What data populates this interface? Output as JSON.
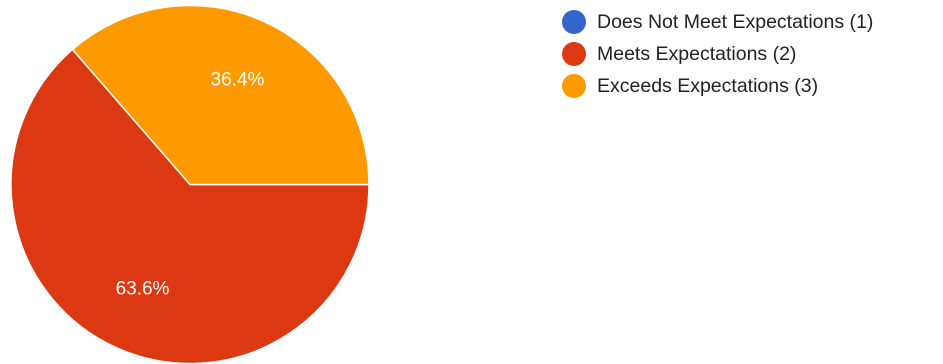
{
  "chart_data": {
    "type": "pie",
    "slices": [
      {
        "label": "Does Not Meet Expectations (1)",
        "value": 0,
        "percent_label": "",
        "color": "#3366cc"
      },
      {
        "label": "Meets Expectations (2)",
        "value": 63.6,
        "percent_label": "63.6%",
        "color": "#dc3912"
      },
      {
        "label": "Exceeds Expectations (3)",
        "value": 36.4,
        "percent_label": "36.4%",
        "color": "#ff9900"
      }
    ],
    "legend_position": "top-right"
  }
}
